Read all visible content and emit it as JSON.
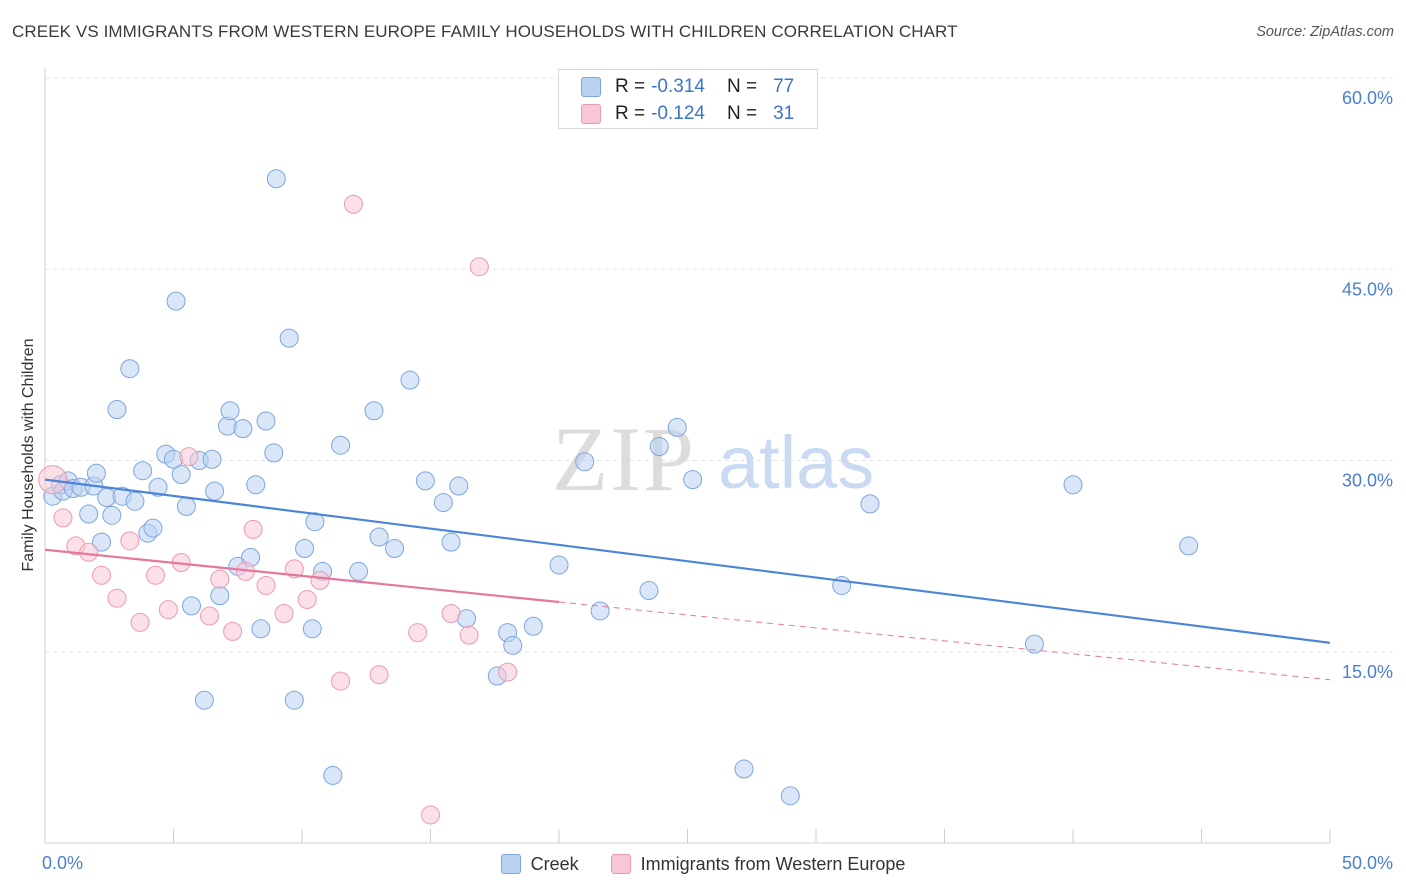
{
  "header": {
    "title": "CREEK VS IMMIGRANTS FROM WESTERN EUROPE FAMILY HOUSEHOLDS WITH CHILDREN CORRELATION CHART",
    "source": "Source: ZipAtlas.com"
  },
  "watermark": {
    "zip": "ZIP",
    "atlas": "atlas"
  },
  "legend": {
    "series": [
      {
        "swatch_fill": "#b9d2f2",
        "swatch_border": "#7ea6dc",
        "r_label": "R =",
        "r_value": "-0.314",
        "n_label": "N =",
        "n_value": "77"
      },
      {
        "swatch_fill": "#f8c6d4",
        "swatch_border": "#ec9ab3",
        "r_label": "R =",
        "r_value": "-0.124",
        "n_label": "N =",
        "n_value": "31"
      }
    ]
  },
  "bottom_legend": {
    "creek": "Creek",
    "immigrants": "Immigrants from Western Europe"
  },
  "chart_data": {
    "type": "scatter",
    "title": "CREEK VS IMMIGRANTS FROM WESTERN EUROPE FAMILY HOUSEHOLDS WITH CHILDREN CORRELATION CHART",
    "xlabel": "",
    "ylabel": "Family Households with Children",
    "xlim": [
      0,
      50
    ],
    "ylim": [
      0,
      60
    ],
    "x_tick_labels": [
      "0.0%",
      "50.0%"
    ],
    "y_ticks": [
      {
        "value": 15,
        "label": "15.0%"
      },
      {
        "value": 30,
        "label": "30.0%"
      },
      {
        "value": 45,
        "label": "45.0%"
      },
      {
        "value": 60,
        "label": "60.0%"
      }
    ],
    "series": [
      {
        "name": "Creek",
        "color": "#4a85d8",
        "fill": "#b9d2f2",
        "stroke": "#7ea6dc",
        "trend": {
          "x": [
            0,
            50
          ],
          "y": [
            28.5,
            15.7
          ],
          "style": "solid"
        },
        "points": [
          [
            0.3,
            27.2
          ],
          [
            0.6,
            28.1
          ],
          [
            0.7,
            27.6
          ],
          [
            0.9,
            28.4
          ],
          [
            1.1,
            27.8
          ],
          [
            1.4,
            27.9
          ],
          [
            1.9,
            28.0
          ],
          [
            1.7,
            25.8
          ],
          [
            2.0,
            29.0
          ],
          [
            2.2,
            23.6
          ],
          [
            2.4,
            27.1
          ],
          [
            2.6,
            25.7
          ],
          [
            2.8,
            34.0
          ],
          [
            3.0,
            27.2
          ],
          [
            3.3,
            37.2
          ],
          [
            3.5,
            26.8
          ],
          [
            3.8,
            29.2
          ],
          [
            4.0,
            24.3
          ],
          [
            4.2,
            24.7
          ],
          [
            4.4,
            27.9
          ],
          [
            4.7,
            30.5
          ],
          [
            5.0,
            30.1
          ],
          [
            5.1,
            42.5
          ],
          [
            5.3,
            28.9
          ],
          [
            5.5,
            26.4
          ],
          [
            5.7,
            18.6
          ],
          [
            6.0,
            30.0
          ],
          [
            6.2,
            11.2
          ],
          [
            6.5,
            30.1
          ],
          [
            6.6,
            27.6
          ],
          [
            6.8,
            19.4
          ],
          [
            7.1,
            32.7
          ],
          [
            7.2,
            33.9
          ],
          [
            7.5,
            21.7
          ],
          [
            7.7,
            32.5
          ],
          [
            8.0,
            22.4
          ],
          [
            8.2,
            28.1
          ],
          [
            8.4,
            16.8
          ],
          [
            8.6,
            33.1
          ],
          [
            8.9,
            30.6
          ],
          [
            9.0,
            52.1
          ],
          [
            9.5,
            39.6
          ],
          [
            9.7,
            11.2
          ],
          [
            10.1,
            23.1
          ],
          [
            10.4,
            16.8
          ],
          [
            10.5,
            25.2
          ],
          [
            10.8,
            21.3
          ],
          [
            11.2,
            5.3
          ],
          [
            11.5,
            31.2
          ],
          [
            12.2,
            21.3
          ],
          [
            12.8,
            33.9
          ],
          [
            13.0,
            24.0
          ],
          [
            13.6,
            23.1
          ],
          [
            14.2,
            36.3
          ],
          [
            14.8,
            28.4
          ],
          [
            15.5,
            26.7
          ],
          [
            15.8,
            23.6
          ],
          [
            16.1,
            28.0
          ],
          [
            16.4,
            17.6
          ],
          [
            17.6,
            13.1
          ],
          [
            18.0,
            16.5
          ],
          [
            18.2,
            15.5
          ],
          [
            19.0,
            17.0
          ],
          [
            20.0,
            21.8
          ],
          [
            21.0,
            29.9
          ],
          [
            21.6,
            18.2
          ],
          [
            23.5,
            19.8
          ],
          [
            23.9,
            31.1
          ],
          [
            24.6,
            32.6
          ],
          [
            25.2,
            28.5
          ],
          [
            27.2,
            5.8
          ],
          [
            29.0,
            3.7
          ],
          [
            31.0,
            20.2
          ],
          [
            32.1,
            26.6
          ],
          [
            38.5,
            15.6
          ],
          [
            40.0,
            28.1
          ],
          [
            44.5,
            23.3
          ]
        ]
      },
      {
        "name": "Immigrants from Western Europe",
        "color": "#e5779c",
        "fill": "#f8c6d4",
        "stroke": "#ec9ab3",
        "trend": {
          "x": [
            0,
            20
          ],
          "y": [
            23.0,
            18.9
          ],
          "style": "solid",
          "dashed_x": [
            20,
            50
          ],
          "dashed_y": [
            18.9,
            12.8
          ]
        },
        "points": [
          [
            0.3,
            28.5
          ],
          [
            0.7,
            25.5
          ],
          [
            1.2,
            23.3
          ],
          [
            1.7,
            22.8
          ],
          [
            2.2,
            21.0
          ],
          [
            2.8,
            19.2
          ],
          [
            3.3,
            23.7
          ],
          [
            3.7,
            17.3
          ],
          [
            4.3,
            21.0
          ],
          [
            4.8,
            18.3
          ],
          [
            5.3,
            22.0
          ],
          [
            5.6,
            30.3
          ],
          [
            6.4,
            17.8
          ],
          [
            6.8,
            20.7
          ],
          [
            7.3,
            16.6
          ],
          [
            7.8,
            21.3
          ],
          [
            8.1,
            24.6
          ],
          [
            8.6,
            20.2
          ],
          [
            9.3,
            18.0
          ],
          [
            9.7,
            21.5
          ],
          [
            10.2,
            19.1
          ],
          [
            10.7,
            20.6
          ],
          [
            11.5,
            12.7
          ],
          [
            12.0,
            50.1
          ],
          [
            13.0,
            13.2
          ],
          [
            14.5,
            16.5
          ],
          [
            15.0,
            2.2
          ],
          [
            15.8,
            18.0
          ],
          [
            16.5,
            16.3
          ],
          [
            16.9,
            45.2
          ],
          [
            18.0,
            13.4
          ]
        ]
      }
    ]
  }
}
